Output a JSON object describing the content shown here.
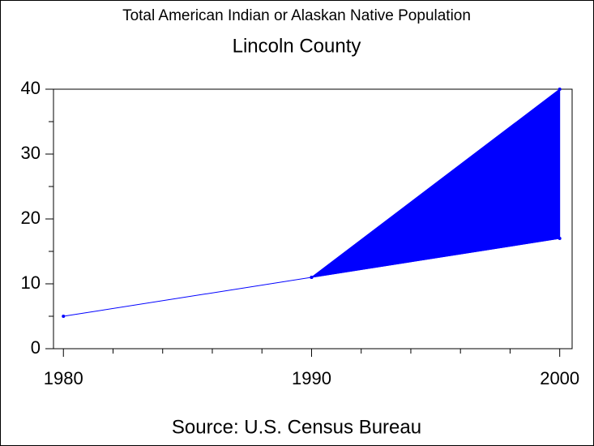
{
  "chart_data": {
    "type": "line",
    "title": "Total American Indian or Alaskan Native Population",
    "subtitle": "Lincoln County",
    "footnote": "Source: U.S. Census Bureau",
    "x": [
      1980,
      1990,
      2000
    ],
    "series": [
      {
        "color": "#0000ff",
        "values": [
          5,
          11,
          17
        ]
      },
      {
        "color": "#0000ff",
        "values": [
          null,
          11,
          40
        ]
      }
    ],
    "fill_between": true,
    "xlim": [
      1979.6,
      2000.5
    ],
    "xticks": [
      1980,
      1990,
      2000
    ],
    "xminorticks": [
      1982,
      1984,
      1986,
      1988,
      1992,
      1994,
      1996,
      1998
    ],
    "ylim": [
      0,
      40
    ],
    "yticks": [
      0,
      10,
      20,
      30,
      40
    ],
    "yminorticks": [
      5,
      15,
      25,
      35
    ],
    "grid": false
  }
}
